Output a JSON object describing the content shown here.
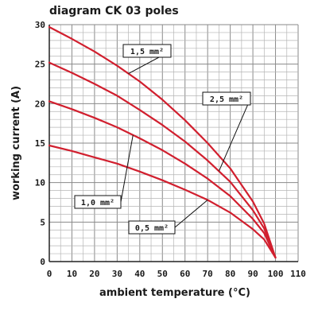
{
  "chart_data": {
    "type": "line",
    "title": "diagram CK 03 poles",
    "xlabel": "ambient temperature (°C)",
    "ylabel": "working current (A)",
    "xlim": [
      0,
      110
    ],
    "ylim": [
      0,
      30
    ],
    "x_ticks": [
      "0",
      "10",
      "20",
      "30",
      "40",
      "50",
      "60",
      "70",
      "80",
      "90",
      "100",
      "110"
    ],
    "y_ticks": [
      "0",
      "5",
      "10",
      "15",
      "20",
      "25",
      "30"
    ],
    "grid": true,
    "series_color": "#d11f2e",
    "series": [
      {
        "name": "1,5 mm²",
        "x": [
          0,
          10,
          20,
          30,
          40,
          50,
          60,
          70,
          80,
          90,
          95,
          100
        ],
        "y": [
          29.7,
          28.2,
          26.6,
          24.8,
          22.8,
          20.5,
          17.9,
          15.0,
          11.8,
          7.6,
          4.8,
          0.5
        ]
      },
      {
        "name": "2,5 mm²",
        "x": [
          0,
          10,
          20,
          30,
          40,
          50,
          60,
          70,
          80,
          90,
          95,
          100
        ],
        "y": [
          25.2,
          23.9,
          22.5,
          21.0,
          19.2,
          17.3,
          15.2,
          12.8,
          10.1,
          6.5,
          4.2,
          0.5
        ]
      },
      {
        "name": "1,0 mm²",
        "x": [
          0,
          10,
          20,
          30,
          40,
          50,
          60,
          70,
          80,
          90,
          95,
          100
        ],
        "y": [
          20.3,
          19.3,
          18.2,
          17.0,
          15.6,
          14.1,
          12.4,
          10.5,
          8.3,
          5.4,
          3.6,
          0.5
        ]
      },
      {
        "name": "0,5 mm²",
        "x": [
          0,
          10,
          20,
          30,
          40,
          50,
          60,
          70,
          80,
          90,
          95,
          100
        ],
        "y": [
          14.7,
          14.0,
          13.2,
          12.4,
          11.4,
          10.3,
          9.1,
          7.8,
          6.2,
          4.1,
          2.8,
          0.5
        ]
      }
    ]
  }
}
